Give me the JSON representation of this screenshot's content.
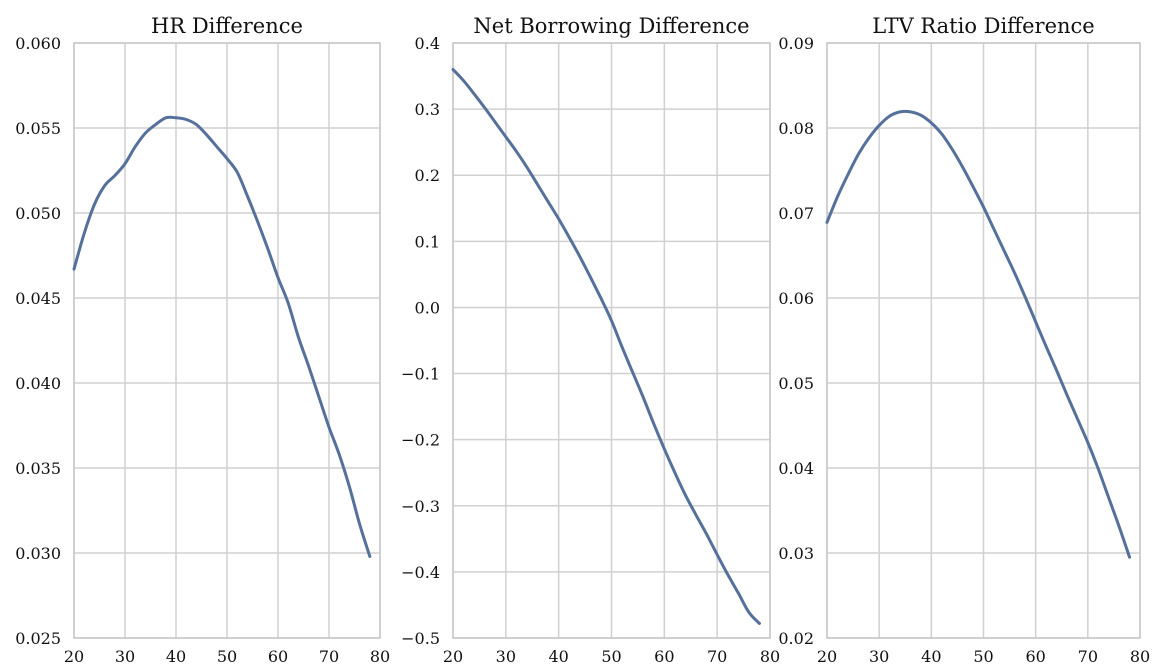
{
  "chart_data": [
    {
      "type": "line",
      "title": "HR Difference",
      "xlabel": "",
      "ylabel": "",
      "xlim": [
        20,
        80
      ],
      "ylim": [
        0.025,
        0.06
      ],
      "grid": true,
      "color": "#55709a",
      "x_ticks": [
        20,
        30,
        40,
        50,
        60,
        70,
        80
      ],
      "x_tick_labels": [
        "20",
        "30",
        "40",
        "50",
        "60",
        "70",
        "80"
      ],
      "y_ticks": [
        0.025,
        0.03,
        0.035,
        0.04,
        0.045,
        0.05,
        0.055,
        0.06
      ],
      "y_tick_labels": [
        "0.025",
        "0.030",
        "0.035",
        "0.040",
        "0.045",
        "0.050",
        "0.055",
        "0.060"
      ],
      "series": [
        {
          "x": [
            20,
            22,
            24,
            26,
            28,
            30,
            32,
            34,
            36,
            38,
            40,
            42,
            44,
            46,
            48,
            50,
            52,
            54,
            56,
            58,
            60,
            62,
            64,
            66,
            68,
            70,
            72,
            74,
            76,
            78
          ],
          "values": [
            0.0467,
            0.0488,
            0.0505,
            0.0516,
            0.0522,
            0.0529,
            0.0539,
            0.0547,
            0.0552,
            0.0556,
            0.0556,
            0.0555,
            0.0552,
            0.0546,
            0.0539,
            0.0532,
            0.0524,
            0.051,
            0.0495,
            0.0479,
            0.0462,
            0.0447,
            0.0427,
            0.041,
            0.0392,
            0.0374,
            0.0358,
            0.0339,
            0.0317,
            0.0298
          ]
        }
      ]
    },
    {
      "type": "line",
      "title": "Net Borrowing Difference",
      "xlabel": "",
      "ylabel": "",
      "xlim": [
        20,
        80
      ],
      "ylim": [
        -0.5,
        0.4
      ],
      "grid": true,
      "color": "#55709a",
      "x_ticks": [
        20,
        30,
        40,
        50,
        60,
        70,
        80
      ],
      "x_tick_labels": [
        "20",
        "30",
        "40",
        "50",
        "60",
        "70",
        "80"
      ],
      "y_ticks": [
        -0.5,
        -0.4,
        -0.3,
        -0.2,
        -0.1,
        0.0,
        0.1,
        0.2,
        0.3,
        0.4
      ],
      "y_tick_labels": [
        "−0.5",
        "−0.4",
        "−0.3",
        "−0.2",
        "−0.1",
        "0.0",
        "0.1",
        "0.2",
        "0.3",
        "0.4"
      ],
      "series": [
        {
          "x": [
            20,
            22,
            24,
            26,
            28,
            30,
            32,
            34,
            36,
            38,
            40,
            42,
            44,
            46,
            48,
            50,
            52,
            54,
            56,
            58,
            60,
            62,
            64,
            66,
            68,
            70,
            72,
            74,
            76,
            78
          ],
          "values": [
            0.36,
            0.343,
            0.323,
            0.302,
            0.28,
            0.258,
            0.236,
            0.212,
            0.186,
            0.16,
            0.134,
            0.106,
            0.077,
            0.046,
            0.014,
            -0.02,
            -0.06,
            -0.098,
            -0.136,
            -0.176,
            -0.214,
            -0.25,
            -0.284,
            -0.314,
            -0.343,
            -0.374,
            -0.404,
            -0.432,
            -0.461,
            -0.478
          ]
        }
      ]
    },
    {
      "type": "line",
      "title": "LTV Ratio Difference",
      "xlabel": "",
      "ylabel": "",
      "xlim": [
        20,
        80
      ],
      "ylim": [
        0.02,
        0.09
      ],
      "grid": true,
      "color": "#55709a",
      "x_ticks": [
        20,
        30,
        40,
        50,
        60,
        70,
        80
      ],
      "x_tick_labels": [
        "20",
        "30",
        "40",
        "50",
        "60",
        "70",
        "80"
      ],
      "y_ticks": [
        0.02,
        0.03,
        0.04,
        0.05,
        0.06,
        0.07,
        0.08,
        0.09
      ],
      "y_tick_labels": [
        "0.02",
        "0.03",
        "0.04",
        "0.05",
        "0.06",
        "0.07",
        "0.08",
        "0.09"
      ],
      "series": [
        {
          "x": [
            20,
            22,
            24,
            26,
            28,
            30,
            32,
            34,
            36,
            38,
            40,
            42,
            44,
            46,
            48,
            50,
            52,
            54,
            56,
            58,
            60,
            62,
            64,
            66,
            68,
            70,
            72,
            74,
            76,
            78
          ],
          "values": [
            0.0689,
            0.0719,
            0.0745,
            0.0769,
            0.0788,
            0.0803,
            0.0814,
            0.0819,
            0.0819,
            0.0815,
            0.0806,
            0.0793,
            0.0775,
            0.0754,
            0.0731,
            0.0707,
            0.0681,
            0.0655,
            0.0629,
            0.0601,
            0.0572,
            0.0543,
            0.0515,
            0.0486,
            0.0458,
            0.043,
            0.0399,
            0.0365,
            0.0331,
            0.0295
          ]
        }
      ]
    }
  ]
}
